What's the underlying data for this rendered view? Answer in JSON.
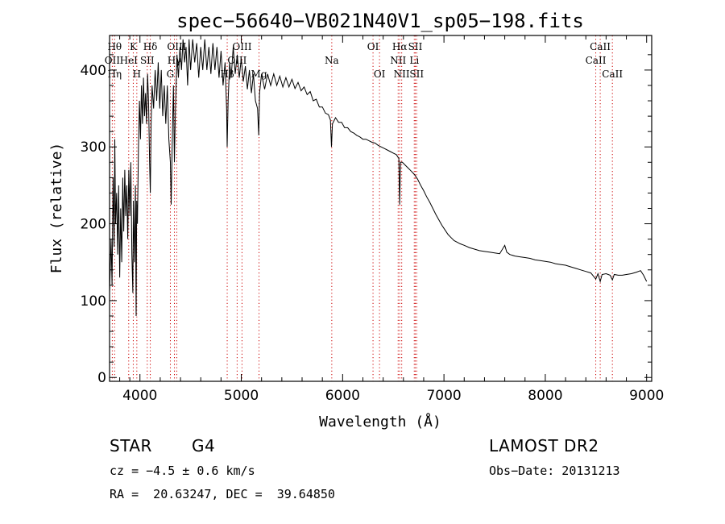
{
  "chart_data": {
    "type": "line",
    "title": "spec−56640−VB021N40V1_sp05−198.fits",
    "xlabel": "Wavelength (Å)",
    "ylabel": "Flux (relative)",
    "xlim": [
      3700,
      9050
    ],
    "ylim": [
      -5,
      445
    ],
    "xticks": [
      4000,
      5000,
      6000,
      7000,
      8000,
      9000
    ],
    "yticks": [
      0,
      100,
      200,
      300,
      400
    ],
    "grid": false,
    "line_color": "#000000",
    "marker_color": "#cc0000",
    "series": [
      {
        "values": [
          [
            3700,
            110
          ],
          [
            3715,
            180
          ],
          [
            3725,
            120
          ],
          [
            3735,
            260
          ],
          [
            3745,
            170
          ],
          [
            3752,
            310
          ],
          [
            3760,
            200
          ],
          [
            3770,
            240
          ],
          [
            3780,
            160
          ],
          [
            3790,
            250
          ],
          [
            3800,
            130
          ],
          [
            3810,
            220
          ],
          [
            3820,
            150
          ],
          [
            3830,
            260
          ],
          [
            3840,
            190
          ],
          [
            3850,
            270
          ],
          [
            3860,
            210
          ],
          [
            3870,
            250
          ],
          [
            3880,
            180
          ],
          [
            3890,
            270
          ],
          [
            3900,
            210
          ],
          [
            3910,
            280
          ],
          [
            3920,
            160
          ],
          [
            3930,
            110
          ],
          [
            3935,
            230
          ],
          [
            3945,
            150
          ],
          [
            3955,
            250
          ],
          [
            3962,
            80
          ],
          [
            3968,
            230
          ],
          [
            3975,
            200
          ],
          [
            3985,
            300
          ],
          [
            3995,
            360
          ],
          [
            4005,
            310
          ],
          [
            4015,
            380
          ],
          [
            4025,
            330
          ],
          [
            4035,
            390
          ],
          [
            4045,
            340
          ],
          [
            4055,
            370
          ],
          [
            4065,
            330
          ],
          [
            4075,
            395
          ],
          [
            4085,
            360
          ],
          [
            4095,
            280
          ],
          [
            4102,
            240
          ],
          [
            4110,
            330
          ],
          [
            4120,
            380
          ],
          [
            4135,
            350
          ],
          [
            4150,
            400
          ],
          [
            4165,
            360
          ],
          [
            4180,
            410
          ],
          [
            4195,
            350
          ],
          [
            4210,
            400
          ],
          [
            4225,
            340
          ],
          [
            4240,
            380
          ],
          [
            4255,
            330
          ],
          [
            4270,
            380
          ],
          [
            4285,
            310
          ],
          [
            4300,
            280
          ],
          [
            4308,
            225
          ],
          [
            4318,
            300
          ],
          [
            4330,
            380
          ],
          [
            4340,
            280
          ],
          [
            4350,
            350
          ],
          [
            4365,
            420
          ],
          [
            4380,
            390
          ],
          [
            4395,
            430
          ],
          [
            4410,
            400
          ],
          [
            4425,
            440
          ],
          [
            4440,
            410
          ],
          [
            4455,
            430
          ],
          [
            4470,
            380
          ],
          [
            4485,
            440
          ],
          [
            4500,
            400
          ],
          [
            4520,
            440
          ],
          [
            4540,
            410
          ],
          [
            4560,
            435
          ],
          [
            4580,
            390
          ],
          [
            4600,
            430
          ],
          [
            4620,
            400
          ],
          [
            4640,
            440
          ],
          [
            4660,
            400
          ],
          [
            4680,
            430
          ],
          [
            4700,
            395
          ],
          [
            4720,
            435
          ],
          [
            4740,
            400
          ],
          [
            4760,
            430
          ],
          [
            4780,
            390
          ],
          [
            4800,
            425
          ],
          [
            4820,
            380
          ],
          [
            4840,
            410
          ],
          [
            4855,
            350
          ],
          [
            4861,
            300
          ],
          [
            4870,
            360
          ],
          [
            4885,
            410
          ],
          [
            4900,
            390
          ],
          [
            4920,
            430
          ],
          [
            4940,
            395
          ],
          [
            4960,
            420
          ],
          [
            4980,
            390
          ],
          [
            5000,
            415
          ],
          [
            5020,
            385
          ],
          [
            5040,
            405
          ],
          [
            5060,
            375
          ],
          [
            5080,
            400
          ],
          [
            5100,
            370
          ],
          [
            5120,
            395
          ],
          [
            5140,
            360
          ],
          [
            5160,
            350
          ],
          [
            5172,
            315
          ],
          [
            5180,
            370
          ],
          [
            5200,
            395
          ],
          [
            5230,
            375
          ],
          [
            5260,
            395
          ],
          [
            5290,
            380
          ],
          [
            5320,
            395
          ],
          [
            5350,
            380
          ],
          [
            5380,
            392
          ],
          [
            5410,
            378
          ],
          [
            5440,
            390
          ],
          [
            5470,
            378
          ],
          [
            5500,
            388
          ],
          [
            5530,
            376
          ],
          [
            5560,
            384
          ],
          [
            5590,
            373
          ],
          [
            5620,
            378
          ],
          [
            5650,
            368
          ],
          [
            5680,
            372
          ],
          [
            5710,
            360
          ],
          [
            5740,
            362
          ],
          [
            5770,
            352
          ],
          [
            5800,
            352
          ],
          [
            5830,
            344
          ],
          [
            5860,
            342
          ],
          [
            5880,
            335
          ],
          [
            5890,
            300
          ],
          [
            5900,
            330
          ],
          [
            5930,
            338
          ],
          [
            5960,
            332
          ],
          [
            5990,
            332
          ],
          [
            6020,
            325
          ],
          [
            6050,
            325
          ],
          [
            6080,
            320
          ],
          [
            6110,
            318
          ],
          [
            6140,
            315
          ],
          [
            6170,
            313
          ],
          [
            6200,
            310
          ],
          [
            6230,
            310
          ],
          [
            6260,
            308
          ],
          [
            6290,
            306
          ],
          [
            6320,
            305
          ],
          [
            6350,
            302
          ],
          [
            6380,
            300
          ],
          [
            6410,
            298
          ],
          [
            6440,
            296
          ],
          [
            6470,
            294
          ],
          [
            6500,
            292
          ],
          [
            6530,
            290
          ],
          [
            6555,
            285
          ],
          [
            6563,
            225
          ],
          [
            6571,
            280
          ],
          [
            6590,
            280
          ],
          [
            6620,
            276
          ],
          [
            6650,
            272
          ],
          [
            6680,
            268
          ],
          [
            6710,
            264
          ],
          [
            6740,
            258
          ],
          [
            6770,
            250
          ],
          [
            6800,
            243
          ],
          [
            6830,
            235
          ],
          [
            6860,
            228
          ],
          [
            6890,
            220
          ],
          [
            6920,
            212
          ],
          [
            6950,
            205
          ],
          [
            6980,
            198
          ],
          [
            7010,
            192
          ],
          [
            7040,
            186
          ],
          [
            7070,
            182
          ],
          [
            7100,
            178
          ],
          [
            7130,
            176
          ],
          [
            7160,
            174
          ],
          [
            7200,
            172
          ],
          [
            7250,
            169
          ],
          [
            7300,
            167
          ],
          [
            7350,
            165
          ],
          [
            7400,
            164
          ],
          [
            7450,
            163
          ],
          [
            7500,
            162
          ],
          [
            7550,
            161
          ],
          [
            7600,
            172
          ],
          [
            7620,
            163
          ],
          [
            7650,
            160
          ],
          [
            7700,
            158
          ],
          [
            7750,
            157
          ],
          [
            7800,
            156
          ],
          [
            7850,
            155
          ],
          [
            7900,
            153
          ],
          [
            7950,
            152
          ],
          [
            8000,
            151
          ],
          [
            8050,
            150
          ],
          [
            8100,
            148
          ],
          [
            8150,
            147
          ],
          [
            8200,
            146
          ],
          [
            8250,
            144
          ],
          [
            8300,
            142
          ],
          [
            8350,
            140
          ],
          [
            8400,
            138
          ],
          [
            8450,
            136
          ],
          [
            8498,
            128
          ],
          [
            8520,
            135
          ],
          [
            8542,
            125
          ],
          [
            8560,
            134
          ],
          [
            8600,
            135
          ],
          [
            8640,
            133
          ],
          [
            8662,
            127
          ],
          [
            8680,
            134
          ],
          [
            8720,
            133
          ],
          [
            8760,
            133
          ],
          [
            8800,
            134
          ],
          [
            8850,
            135
          ],
          [
            8900,
            137
          ],
          [
            8940,
            139
          ],
          [
            8970,
            133
          ],
          [
            9000,
            125
          ]
        ]
      }
    ],
    "lines": [
      {
        "wavelength": 3727,
        "labels": [
          {
            "text": "OII",
            "row": 1
          }
        ]
      },
      {
        "wavelength": 3750,
        "labels": [
          {
            "text": "Hθ",
            "row": 0
          },
          {
            "text": "Hη",
            "row": 2
          }
        ]
      },
      {
        "wavelength": 3889,
        "labels": [
          {
            "text": "HeI",
            "row": 1
          }
        ]
      },
      {
        "wavelength": 3934,
        "labels": [
          {
            "text": "K",
            "row": 0
          }
        ]
      },
      {
        "wavelength": 3969,
        "labels": [
          {
            "text": "H",
            "row": 2
          }
        ]
      },
      {
        "wavelength": 4072,
        "labels": [
          {
            "text": "SII",
            "row": 1
          }
        ]
      },
      {
        "wavelength": 4102,
        "labels": [
          {
            "text": "Hδ",
            "row": 0
          }
        ]
      },
      {
        "wavelength": 4300,
        "labels": [
          {
            "text": "G",
            "row": 2
          }
        ]
      },
      {
        "wavelength": 4340,
        "labels": [
          {
            "text": "Hγ",
            "row": 1
          }
        ]
      },
      {
        "wavelength": 4363,
        "labels": [
          {
            "text": "OIII",
            "row": 0
          }
        ]
      },
      {
        "wavelength": 4861,
        "labels": [
          {
            "text": "Hβ",
            "row": 2
          }
        ]
      },
      {
        "wavelength": 4959,
        "labels": [
          {
            "text": "OIII",
            "row": 1
          }
        ]
      },
      {
        "wavelength": 5007,
        "labels": [
          {
            "text": "OIII",
            "row": 0
          }
        ]
      },
      {
        "wavelength": 5175,
        "labels": [
          {
            "text": "Mg",
            "row": 2
          }
        ]
      },
      {
        "wavelength": 5893,
        "labels": [
          {
            "text": "Na",
            "row": 1
          }
        ]
      },
      {
        "wavelength": 6300,
        "labels": [
          {
            "text": "OI",
            "row": 0
          }
        ]
      },
      {
        "wavelength": 6364,
        "labels": [
          {
            "text": "OI",
            "row": 2
          }
        ]
      },
      {
        "wavelength": 6548,
        "labels": [
          {
            "text": "NII",
            "row": 1
          }
        ]
      },
      {
        "wavelength": 6563,
        "labels": [
          {
            "text": "Hα",
            "row": 0
          }
        ]
      },
      {
        "wavelength": 6583,
        "labels": [
          {
            "text": "NII",
            "row": 2
          }
        ]
      },
      {
        "wavelength": 6707,
        "labels": [
          {
            "text": "Li",
            "row": 1
          }
        ]
      },
      {
        "wavelength": 6717,
        "labels": [
          {
            "text": "SII",
            "row": 0
          }
        ]
      },
      {
        "wavelength": 6731,
        "labels": [
          {
            "text": "SII",
            "row": 2
          }
        ]
      },
      {
        "wavelength": 8498,
        "labels": [
          {
            "text": "CaII",
            "row": 1
          }
        ]
      },
      {
        "wavelength": 8542,
        "labels": [
          {
            "text": "CaII",
            "row": 0
          }
        ]
      },
      {
        "wavelength": 8662,
        "labels": [
          {
            "text": "CaII",
            "row": 2
          }
        ]
      }
    ]
  },
  "info": {
    "class_label": "STAR",
    "subclass": "G4",
    "cz": "cz = −4.5 ± 0.6 km/s",
    "coords": "RA =  20.63247, DEC =  39.64850",
    "survey": "LAMOST DR2",
    "obs_date": "Obs−Date: 20131213"
  }
}
